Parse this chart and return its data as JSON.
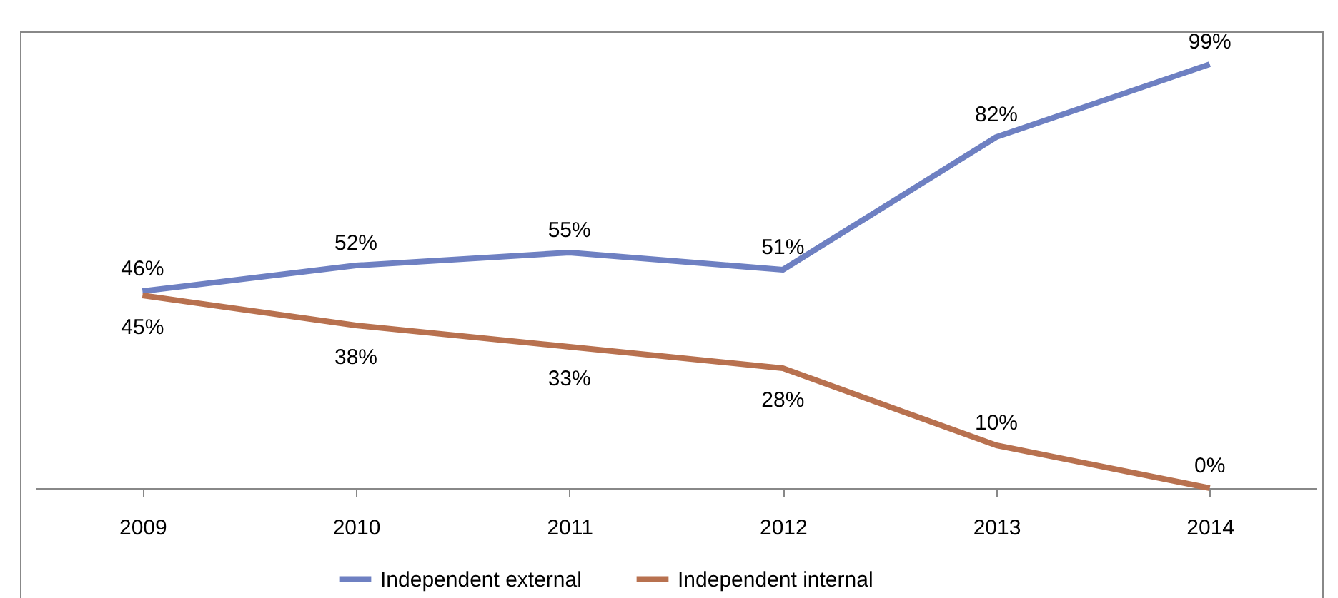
{
  "chart_data": {
    "type": "line",
    "categories": [
      "2009",
      "2010",
      "2011",
      "2012",
      "2013",
      "2014"
    ],
    "series": [
      {
        "name": "Independent external",
        "color": "#6e80c2",
        "values": [
          46,
          52,
          55,
          51,
          82,
          99
        ],
        "value_labels": [
          "46%",
          "52%",
          "55%",
          "51%",
          "82%",
          "99%"
        ]
      },
      {
        "name": "Independent internal",
        "color": "#b8714f",
        "values": [
          45,
          38,
          33,
          28,
          10,
          0
        ],
        "value_labels": [
          "45%",
          "38%",
          "33%",
          "28%",
          "10%",
          "0%"
        ]
      }
    ],
    "legend": "bottom",
    "grid": false,
    "marker": "none",
    "line_style": "solid",
    "tick_labels": "x"
  }
}
